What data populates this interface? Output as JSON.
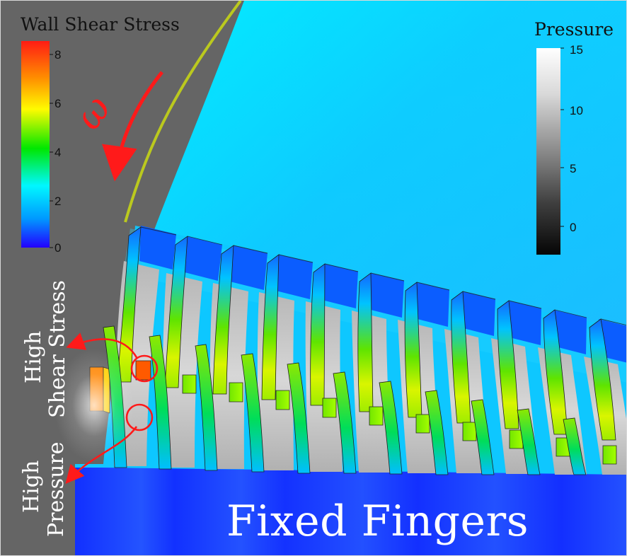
{
  "figure": {
    "wall_shear_stress": {
      "title": "Wall Shear Stress",
      "ticks": [
        "8",
        "6",
        "4",
        "2",
        "0"
      ],
      "colors": [
        "#ff1c14",
        "#ff8f00",
        "#fffb00",
        "#00e700",
        "#00f7ff",
        "#0099ff",
        "#2300ff"
      ]
    },
    "pressure": {
      "title": "Pressure",
      "ticks": [
        "15",
        "10",
        "5",
        "0"
      ],
      "colors": [
        "#ffffff",
        "#c9c9c9",
        "#8a8a8a",
        "#3f3f3f",
        "#050505"
      ]
    },
    "annotations": {
      "omega": "ω",
      "high_shear_stress": [
        "High",
        "Shear Stress"
      ],
      "high_pressure": [
        "High",
        "Pressure"
      ],
      "fixed_fingers": "Fixed Fingers"
    },
    "colors": {
      "background": "#656565",
      "fluid": "#1cc6ff",
      "cyan": "#00e6ff",
      "annotation": "#ff1a1a",
      "fixed_fingers": "#1d40ff"
    }
  }
}
